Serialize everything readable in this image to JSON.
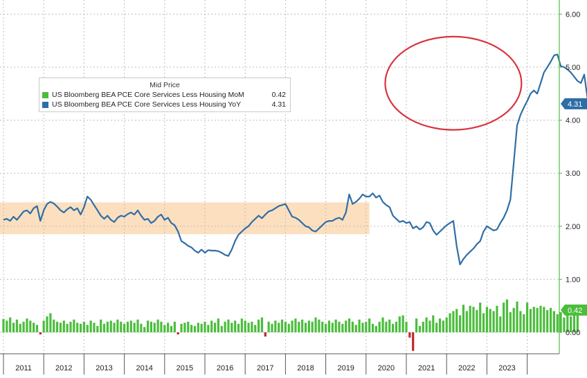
{
  "chart_data": {
    "type": "line",
    "title": "",
    "xlabel": "",
    "ylabel": "",
    "legend_title": "Mid Price",
    "legend_position": "top-left",
    "grid": true,
    "ylim": [
      -0.4,
      6.2
    ],
    "y_ticks": [
      "0.00",
      "1.00",
      "2.00",
      "3.00",
      "4.00",
      "5.00",
      "6.00"
    ],
    "x_tick_labels": [
      "2011",
      "2012",
      "2013",
      "2014",
      "2015",
      "2016",
      "2017",
      "2018",
      "2019",
      "2020",
      "2021",
      "2022",
      "2023"
    ],
    "shaded_band": {
      "y_from": 1.85,
      "y_to": 2.45,
      "x_from": "2011-01",
      "x_to": "2020-02",
      "color": "#fcd9b4"
    },
    "annotation_ellipse": {
      "x_from": "2020-10",
      "x_to": "2023-08",
      "y_from": 4.0,
      "y_to": 5.55,
      "color": "#d8333f"
    },
    "series": [
      {
        "name": "US Bloomberg BEA PCE Core Services Less Housing MoM",
        "legend_value": "0.42",
        "last_label": "0.42",
        "color": "#4bbd3c",
        "kind": "bar",
        "start": "2011-01",
        "values": [
          0.25,
          0.22,
          0.28,
          0.18,
          0.24,
          0.16,
          0.2,
          0.26,
          0.22,
          0.18,
          0.14,
          -0.04,
          0.22,
          0.3,
          0.36,
          0.24,
          0.2,
          0.18,
          0.22,
          0.16,
          0.2,
          0.24,
          0.18,
          0.16,
          0.2,
          0.14,
          0.22,
          0.18,
          0.12,
          0.24,
          0.16,
          0.2,
          0.22,
          0.18,
          0.24,
          0.2,
          0.16,
          0.2,
          0.22,
          0.18,
          0.24,
          0.16,
          0.1,
          0.22,
          0.2,
          0.18,
          0.24,
          0.2,
          0.14,
          0.18,
          0.12,
          0.2,
          -0.04,
          0.16,
          0.18,
          0.2,
          0.14,
          0.12,
          0.18,
          0.16,
          0.2,
          0.14,
          0.22,
          0.18,
          0.26,
          0.12,
          0.2,
          0.24,
          0.18,
          0.22,
          0.16,
          0.26,
          0.22,
          0.18,
          0.2,
          0.14,
          0.24,
          0.28,
          -0.08,
          0.2,
          0.16,
          0.22,
          0.18,
          0.24,
          0.2,
          0.16,
          0.22,
          0.26,
          0.2,
          0.24,
          0.18,
          0.22,
          0.2,
          0.28,
          0.24,
          0.2,
          0.16,
          0.22,
          0.18,
          0.24,
          0.2,
          0.16,
          0.22,
          0.26,
          0.2,
          0.14,
          0.24,
          0.18,
          0.2,
          0.26,
          0.16,
          0.12,
          0.2,
          0.28,
          0.2,
          0.24,
          0.16,
          0.2,
          0.3,
          0.32,
          0.2,
          -0.1,
          -0.35,
          0.26,
          0.12,
          0.2,
          0.28,
          0.22,
          0.32,
          0.18,
          0.26,
          0.22,
          0.28,
          0.36,
          0.4,
          0.44,
          0.32,
          0.52,
          0.4,
          0.5,
          0.48,
          0.42,
          0.56,
          0.36,
          0.48,
          0.44,
          0.4,
          0.5,
          0.3,
          0.56,
          0.62,
          0.38,
          0.46,
          0.58,
          0.4,
          0.34,
          0.56,
          0.44,
          0.48,
          0.46,
          0.5,
          0.48,
          0.42,
          0.46,
          0.4,
          0.34,
          0.38,
          0.28,
          0.48,
          0.3,
          0.52,
          0.42
        ]
      },
      {
        "name": "US Bloomberg BEA PCE Core Services Less Housing YoY",
        "legend_value": "4.31",
        "last_label": "4.31",
        "color": "#2e6ea6",
        "kind": "line",
        "start": "2011-01",
        "values": [
          2.12,
          2.14,
          2.1,
          2.18,
          2.12,
          2.2,
          2.28,
          2.3,
          2.24,
          2.34,
          2.38,
          2.1,
          2.3,
          2.42,
          2.46,
          2.43,
          2.37,
          2.3,
          2.26,
          2.32,
          2.36,
          2.3,
          2.34,
          2.22,
          2.36,
          2.56,
          2.5,
          2.4,
          2.3,
          2.2,
          2.14,
          2.2,
          2.12,
          2.08,
          2.16,
          2.2,
          2.18,
          2.23,
          2.26,
          2.22,
          2.3,
          2.2,
          2.12,
          2.14,
          2.06,
          2.1,
          2.18,
          2.22,
          2.12,
          2.16,
          2.06,
          2.02,
          1.9,
          1.72,
          1.68,
          1.63,
          1.6,
          1.54,
          1.5,
          1.56,
          1.5,
          1.55,
          1.54,
          1.54,
          1.53,
          1.5,
          1.46,
          1.44,
          1.56,
          1.72,
          1.84,
          1.9,
          1.96,
          2.0,
          2.08,
          2.14,
          2.2,
          2.15,
          2.22,
          2.28,
          2.3,
          2.34,
          2.38,
          2.4,
          2.42,
          2.3,
          2.18,
          2.16,
          2.12,
          2.06,
          2.0,
          1.98,
          1.92,
          1.9,
          1.96,
          2.02,
          2.08,
          2.1,
          2.1,
          2.14,
          2.16,
          2.12,
          2.26,
          2.6,
          2.42,
          2.46,
          2.52,
          2.6,
          2.56,
          2.56,
          2.62,
          2.54,
          2.58,
          2.46,
          2.4,
          2.36,
          2.2,
          2.14,
          2.08,
          2.1,
          2.06,
          2.08,
          1.96,
          2.0,
          1.94,
          1.98,
          2.08,
          2.06,
          1.92,
          1.84,
          1.9,
          1.96,
          2.02,
          2.06,
          2.1,
          1.62,
          1.28,
          1.38,
          1.46,
          1.52,
          1.58,
          1.66,
          1.72,
          1.9,
          2.0,
          1.96,
          1.92,
          1.94,
          2.06,
          2.16,
          2.3,
          2.5,
          3.2,
          3.9,
          4.1,
          4.24,
          4.36,
          4.5,
          4.56,
          4.5,
          4.7,
          4.9,
          5.0,
          5.1,
          5.22,
          5.24,
          5.02,
          5.0,
          4.96,
          4.9,
          4.82,
          4.74,
          4.7,
          4.86,
          4.4,
          4.62,
          4.84,
          5.0,
          5.18,
          5.1,
          5.02,
          4.86,
          4.98,
          5.1,
          5.08,
          4.92,
          4.9,
          4.78,
          4.5,
          4.62,
          4.76,
          4.38,
          4.31
        ]
      }
    ]
  }
}
